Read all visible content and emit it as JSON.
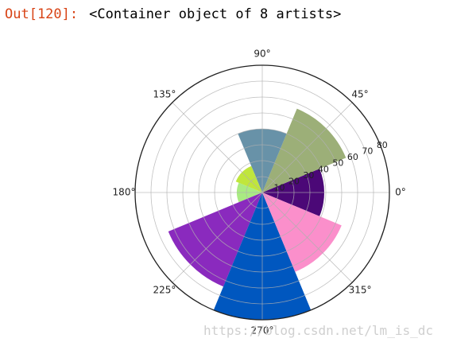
{
  "notebook": {
    "out_prompt": "Out[120]:",
    "out_text": "<Container object of 8 artists>"
  },
  "chart_data": {
    "type": "bar",
    "projection": "polar",
    "theta_deg": [
      0,
      45,
      90,
      135,
      180,
      225,
      270,
      315
    ],
    "width_deg": 45,
    "radii": [
      39,
      57,
      40,
      18,
      16,
      64,
      80,
      54
    ],
    "colors": [
      "#4b0877",
      "#9caf78",
      "#6892a8",
      "#c0e63c",
      "#a9eb82",
      "#8a2abe",
      "#0057bf",
      "#fb8fcb"
    ],
    "rlim": [
      0,
      80
    ],
    "r_ticks": [
      10,
      20,
      30,
      40,
      50,
      60,
      70,
      80
    ],
    "theta_ticks": [
      "0°",
      "45°",
      "90°",
      "135°",
      "180°",
      "225°",
      "270°",
      "315°"
    ],
    "grid": true
  },
  "watermark": "https://blog.csdn.net/lm_is_dc"
}
